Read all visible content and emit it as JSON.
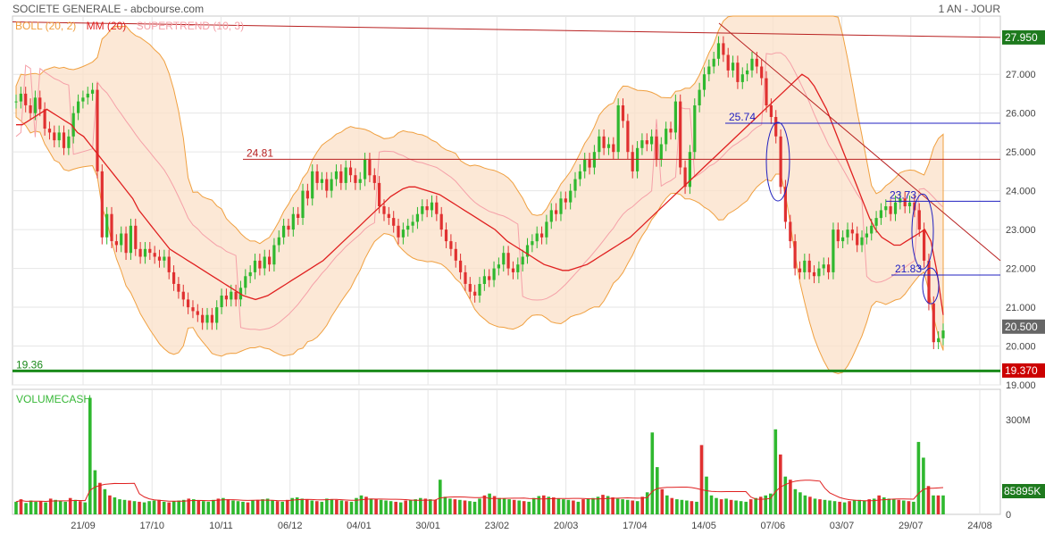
{
  "header": {
    "title": "SOCIETE GENERALE - abcbourse.com",
    "period": "1 AN - JOUR"
  },
  "legend": {
    "boll": "BOLL (20, 2)",
    "boll_color": "#f0a040",
    "mm": "MM (20)",
    "mm_color": "#e02020",
    "supertrend": "SUPERTREND (10, 3)",
    "supertrend_color": "#f5a0a8"
  },
  "volume_title": "VOLUMECASH",
  "chart_data": {
    "type": "candlestick",
    "price": {
      "ylim": [
        19.0,
        28.5
      ],
      "y_ticks": [
        "19.000",
        "20.000",
        "21.000",
        "22.000",
        "23.000",
        "24.000",
        "25.000",
        "26.000",
        "27.000"
      ],
      "x_tick_labels": [
        "21/09",
        "17/10",
        "10/11",
        "06/12",
        "04/01",
        "30/01",
        "23/02",
        "20/03",
        "17/04",
        "14/05",
        "07/06",
        "03/07",
        "29/07",
        "24/08"
      ],
      "close": [
        26.3,
        26.5,
        26.2,
        26.0,
        26.4,
        26.1,
        25.6,
        25.5,
        25.3,
        25.5,
        25.1,
        25.4,
        26.0,
        26.3,
        26.4,
        26.5,
        26.6,
        24.5,
        22.8,
        23.4,
        22.7,
        22.6,
        22.9,
        22.4,
        23.1,
        22.5,
        22.3,
        22.5,
        22.4,
        22.3,
        22.2,
        22.3,
        21.9,
        21.6,
        21.4,
        21.2,
        21.0,
        20.9,
        20.8,
        20.6,
        20.8,
        20.6,
        21.0,
        21.3,
        21.2,
        21.4,
        21.2,
        21.5,
        21.8,
        21.9,
        22.2,
        22.0,
        22.3,
        22.1,
        22.6,
        22.8,
        23.1,
        23.0,
        23.4,
        23.3,
        24.0,
        23.8,
        24.5,
        24.2,
        24.3,
        24.0,
        24.3,
        24.5,
        24.2,
        24.6,
        24.4,
        24.2,
        24.3,
        24.8,
        24.4,
        24.2,
        23.6,
        23.4,
        23.3,
        23.1,
        22.8,
        23.0,
        23.1,
        23.2,
        23.4,
        23.6,
        23.5,
        23.7,
        23.4,
        23.0,
        22.7,
        22.5,
        22.2,
        21.9,
        21.6,
        21.4,
        21.3,
        21.6,
        21.8,
        21.7,
        22.0,
        22.1,
        22.4,
        22.0,
        21.9,
        22.1,
        22.3,
        22.6,
        22.7,
        22.9,
        22.8,
        23.2,
        23.5,
        23.4,
        23.8,
        23.7,
        24.0,
        24.3,
        24.5,
        24.8,
        24.6,
        25.0,
        25.4,
        25.1,
        25.2,
        25.0,
        26.2,
        25.8,
        25.0,
        24.5,
        25.1,
        25.3,
        25.2,
        25.4,
        24.8,
        25.2,
        25.6,
        25.5,
        26.3,
        24.6,
        24.1,
        25.0,
        26.2,
        26.6,
        27.0,
        27.2,
        27.4,
        27.8,
        27.5,
        27.1,
        27.3,
        26.8,
        27.0,
        27.1,
        27.4,
        27.2,
        26.9,
        26.2,
        25.9,
        25.4,
        24.1,
        23.2,
        22.7,
        22.0,
        21.9,
        22.2,
        21.9,
        21.8,
        22.0,
        22.1,
        21.9,
        23.0,
        22.7,
        22.8,
        23.0,
        22.9,
        22.6,
        22.8,
        22.9,
        23.1,
        23.3,
        23.5,
        23.6,
        23.4,
        23.7,
        23.8,
        23.6,
        23.7,
        23.5,
        23.0,
        22.2,
        21.1,
        20.1,
        20.2,
        20.4
      ],
      "series": [
        {
          "name": "MM (20)",
          "values": [
            25.7,
            25.7,
            25.8,
            25.9,
            26.0,
            26.1,
            26.0,
            25.9,
            25.8,
            25.7,
            25.5,
            25.4,
            25.2,
            25.0,
            24.8,
            24.6,
            24.4,
            24.2,
            24.0,
            23.8,
            23.5,
            23.3,
            23.1,
            22.9,
            22.7,
            22.5,
            22.4,
            22.3,
            22.2,
            22.1,
            22.0,
            21.9,
            21.8,
            21.7,
            21.6,
            21.5,
            21.4,
            21.3,
            21.25,
            21.2,
            21.25,
            21.3,
            21.4,
            21.5,
            21.6,
            21.7,
            21.8,
            21.9,
            22.0,
            22.1,
            22.2,
            22.35,
            22.5,
            22.65,
            22.8,
            22.95,
            23.1,
            23.25,
            23.4,
            23.55,
            23.7,
            23.85,
            23.95,
            24.05,
            24.1,
            24.1,
            24.05,
            24.0,
            23.95,
            23.9,
            23.8,
            23.7,
            23.6,
            23.5,
            23.4,
            23.3,
            23.2,
            23.1,
            23.0,
            22.85,
            22.7,
            22.6,
            22.5,
            22.4,
            22.3,
            22.2,
            22.1,
            22.05,
            22.0,
            21.95,
            21.95,
            22.0,
            22.05,
            22.1,
            22.2,
            22.3,
            22.4,
            22.5,
            22.6,
            22.7,
            22.8,
            22.95,
            23.1,
            23.25,
            23.4,
            23.55,
            23.7,
            23.85,
            24.0,
            24.15,
            24.3,
            24.45,
            24.6,
            24.75,
            24.9,
            25.05,
            25.2,
            25.35,
            25.5,
            25.65,
            25.8,
            25.95,
            26.1,
            26.25,
            26.4,
            26.55,
            26.7,
            26.85,
            27.0,
            26.9,
            26.7,
            26.4,
            26.1,
            25.7,
            25.3,
            24.9,
            24.5,
            24.1,
            23.7,
            23.3,
            23.0,
            22.8,
            22.7,
            22.6,
            22.6,
            22.7,
            22.8,
            22.9,
            23.0,
            22.7,
            21.9,
            20.8
          ]
        }
      ],
      "annotations": [
        {
          "label": "24.81",
          "value": 24.81
        },
        {
          "label": "25.74",
          "value": 25.74
        },
        {
          "label": "23.73",
          "value": 23.73
        },
        {
          "label": "21.83",
          "value": 21.83
        },
        {
          "label": "19.36",
          "value": 19.36
        }
      ],
      "price_badges": [
        {
          "label": "27.950",
          "value": 27.95,
          "color": "#1e7a1e"
        },
        {
          "label": "20.500",
          "value": 20.5,
          "color": "#666666"
        },
        {
          "label": "19.370",
          "value": 19.37,
          "color": "#cc0000"
        }
      ]
    },
    "volume": {
      "y_ticks": [
        {
          "label": "300M",
          "value": 300
        },
        {
          "label": "0",
          "value": 0
        }
      ],
      "badge": {
        "label": "85895K",
        "color": "#1e7a1e"
      },
      "values": [
        40,
        48,
        36,
        44,
        40,
        42,
        38,
        50,
        46,
        44,
        40,
        52,
        46,
        42,
        38,
        370,
        140,
        100,
        80,
        60,
        54,
        48,
        46,
        44,
        42,
        40,
        38,
        42,
        44,
        46,
        40,
        38,
        42,
        44,
        46,
        50,
        48,
        44,
        42,
        40,
        46,
        50,
        52,
        48,
        44,
        42,
        40,
        38,
        44,
        46,
        48,
        50,
        44,
        42,
        40,
        46,
        52,
        54,
        50,
        48,
        44,
        42,
        40,
        50,
        48,
        46,
        44,
        42,
        40,
        52,
        60,
        56,
        50,
        48,
        46,
        44,
        42,
        40,
        38,
        44,
        46,
        48,
        52,
        50,
        48,
        46,
        110,
        56,
        50,
        48,
        46,
        44,
        42,
        40,
        50,
        60,
        66,
        58,
        52,
        50,
        48,
        46,
        44,
        42,
        40,
        52,
        58,
        60,
        56,
        54,
        50,
        48,
        46,
        44,
        40,
        48,
        50,
        52,
        56,
        62,
        58,
        54,
        50,
        48,
        46,
        44,
        42,
        56,
        70,
        260,
        150,
        80,
        60,
        52,
        48,
        46,
        44,
        42,
        40,
        220,
        120,
        60,
        52,
        48,
        50,
        46,
        44,
        42,
        40,
        48,
        52,
        56,
        60,
        66,
        270,
        190,
        120,
        110,
        80,
        70,
        60,
        56,
        50,
        48,
        46,
        44,
        42,
        40,
        38,
        42,
        44,
        46,
        44,
        48,
        50,
        60,
        54,
        50,
        48,
        46,
        44,
        42,
        40,
        230,
        180,
        90,
        60,
        60,
        60
      ]
    }
  }
}
